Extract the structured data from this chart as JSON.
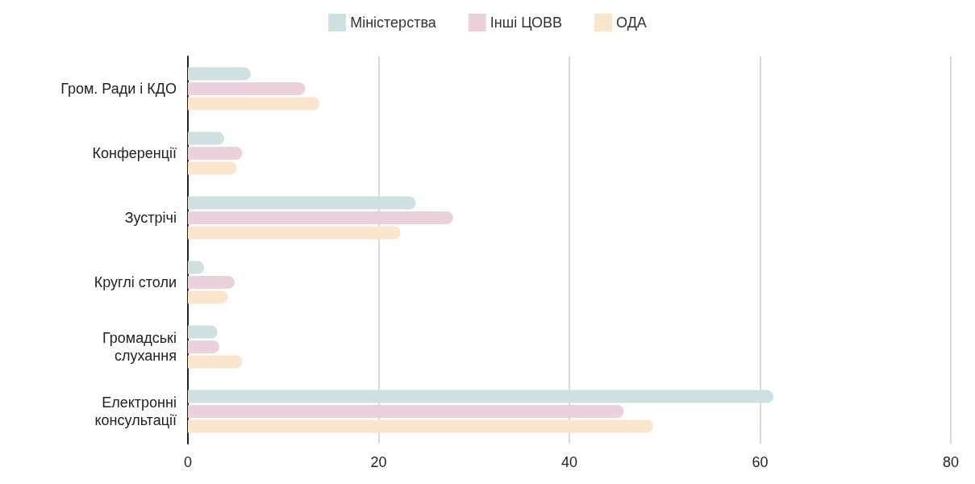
{
  "chart_data": {
    "type": "bar",
    "orientation": "horizontal",
    "categories": [
      "Гром. Ради і КДО",
      "Конференції",
      "Зустрічі",
      "Круглі столи",
      "Громадські\nслухання",
      "Електронні\nконсультації"
    ],
    "series": [
      {
        "name": "Міністерства",
        "color": "#cfe0e3",
        "values": [
          6.6,
          3.8,
          23.9,
          1.7,
          3.1,
          61.4
        ]
      },
      {
        "name": "Інші ЦОВВ",
        "color": "#ead1dc",
        "values": [
          12.3,
          5.7,
          27.8,
          4.9,
          3.3,
          45.7
        ]
      },
      {
        "name": "ОДА",
        "color": "#fce5cd",
        "values": [
          13.8,
          5.1,
          22.3,
          4.2,
          5.7,
          48.8
        ]
      }
    ],
    "xlim": [
      0,
      80
    ],
    "xticks": [
      0,
      20,
      40,
      60,
      80
    ],
    "grid": "x",
    "legend": "top"
  }
}
